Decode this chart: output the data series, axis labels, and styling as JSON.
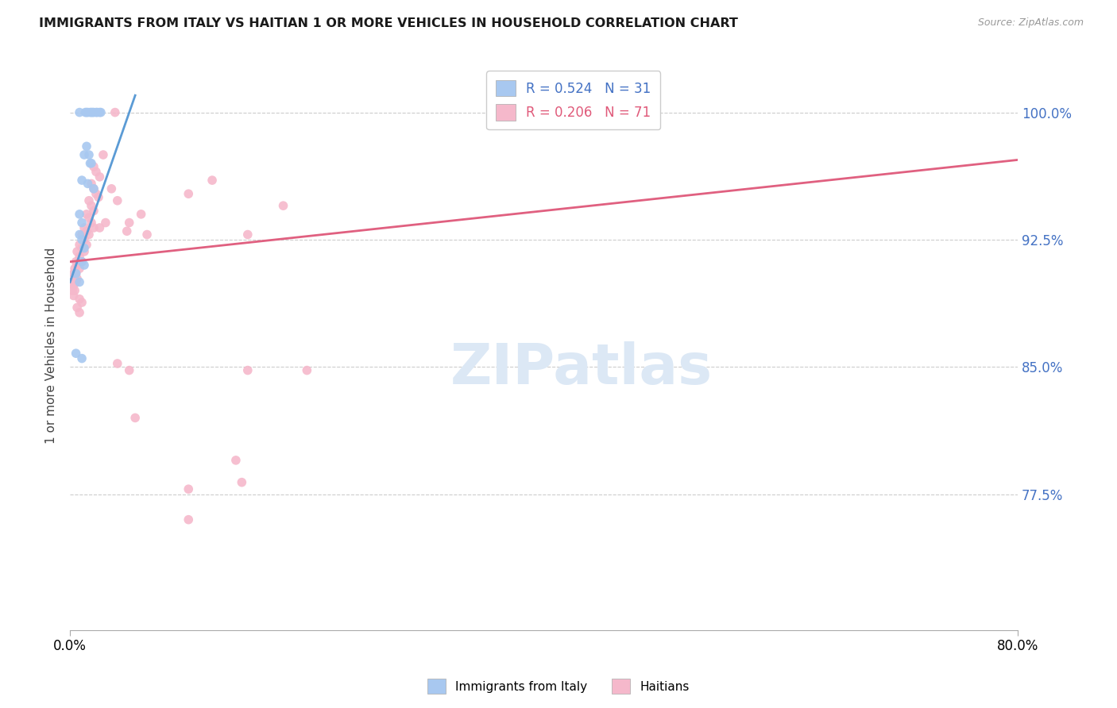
{
  "title": "IMMIGRANTS FROM ITALY VS HAITIAN 1 OR MORE VEHICLES IN HOUSEHOLD CORRELATION CHART",
  "source": "Source: ZipAtlas.com",
  "ylabel": "1 or more Vehicles in Household",
  "italy_color": "#a8c8f0",
  "haiti_color": "#f5b8cb",
  "italy_line_color": "#5b9bd5",
  "haiti_line_color": "#e06080",
  "marker_size": 70,
  "xlim": [
    0.0,
    0.8
  ],
  "ylim": [
    0.695,
    1.03
  ],
  "y_tick_positions": [
    0.775,
    0.85,
    0.925,
    1.0
  ],
  "y_tick_labels": [
    "77.5%",
    "85.0%",
    "92.5%",
    "100.0%"
  ],
  "x_tick_positions": [
    0.0,
    0.8
  ],
  "x_tick_labels": [
    "0.0%",
    "80.0%"
  ],
  "grid_color": "#cccccc",
  "background_color": "#ffffff",
  "watermark_text": "ZIPatlas",
  "watermark_color": "#dce8f5",
  "italy_points": [
    [
      0.008,
      1.0
    ],
    [
      0.013,
      1.0
    ],
    [
      0.014,
      1.0
    ],
    [
      0.015,
      1.0
    ],
    [
      0.017,
      1.0
    ],
    [
      0.018,
      1.0
    ],
    [
      0.019,
      1.0
    ],
    [
      0.02,
      1.0
    ],
    [
      0.022,
      1.0
    ],
    [
      0.023,
      1.0
    ],
    [
      0.025,
      1.0
    ],
    [
      0.026,
      1.0
    ],
    [
      0.014,
      0.98
    ],
    [
      0.016,
      0.975
    ],
    [
      0.017,
      0.97
    ],
    [
      0.01,
      0.96
    ],
    [
      0.015,
      0.958
    ],
    [
      0.02,
      0.955
    ],
    [
      0.012,
      0.975
    ],
    [
      0.018,
      0.97
    ],
    [
      0.008,
      0.94
    ],
    [
      0.01,
      0.935
    ],
    [
      0.008,
      0.928
    ],
    [
      0.01,
      0.925
    ],
    [
      0.012,
      0.92
    ],
    [
      0.01,
      0.912
    ],
    [
      0.012,
      0.91
    ],
    [
      0.005,
      0.905
    ],
    [
      0.008,
      0.9
    ],
    [
      0.005,
      0.858
    ],
    [
      0.01,
      0.855
    ]
  ],
  "haiti_points": [
    [
      0.038,
      1.0
    ],
    [
      0.028,
      0.975
    ],
    [
      0.02,
      0.968
    ],
    [
      0.022,
      0.965
    ],
    [
      0.025,
      0.962
    ],
    [
      0.018,
      0.958
    ],
    [
      0.02,
      0.955
    ],
    [
      0.022,
      0.952
    ],
    [
      0.024,
      0.95
    ],
    [
      0.016,
      0.948
    ],
    [
      0.018,
      0.945
    ],
    [
      0.02,
      0.942
    ],
    [
      0.014,
      0.94
    ],
    [
      0.016,
      0.938
    ],
    [
      0.018,
      0.935
    ],
    [
      0.02,
      0.932
    ],
    [
      0.012,
      0.932
    ],
    [
      0.014,
      0.93
    ],
    [
      0.016,
      0.928
    ],
    [
      0.01,
      0.928
    ],
    [
      0.012,
      0.925
    ],
    [
      0.014,
      0.922
    ],
    [
      0.008,
      0.922
    ],
    [
      0.01,
      0.92
    ],
    [
      0.012,
      0.918
    ],
    [
      0.006,
      0.918
    ],
    [
      0.008,
      0.915
    ],
    [
      0.01,
      0.912
    ],
    [
      0.005,
      0.912
    ],
    [
      0.006,
      0.91
    ],
    [
      0.008,
      0.908
    ],
    [
      0.004,
      0.908
    ],
    [
      0.005,
      0.905
    ],
    [
      0.006,
      0.902
    ],
    [
      0.003,
      0.905
    ],
    [
      0.004,
      0.902
    ],
    [
      0.005,
      0.9
    ],
    [
      0.002,
      0.9
    ],
    [
      0.003,
      0.898
    ],
    [
      0.004,
      0.895
    ],
    [
      0.002,
      0.895
    ],
    [
      0.003,
      0.892
    ],
    [
      0.008,
      0.89
    ],
    [
      0.01,
      0.888
    ],
    [
      0.006,
      0.885
    ],
    [
      0.008,
      0.882
    ],
    [
      0.025,
      0.932
    ],
    [
      0.03,
      0.935
    ],
    [
      0.035,
      0.955
    ],
    [
      0.04,
      0.948
    ],
    [
      0.048,
      0.93
    ],
    [
      0.05,
      0.935
    ],
    [
      0.06,
      0.94
    ],
    [
      0.065,
      0.928
    ],
    [
      0.1,
      0.952
    ],
    [
      0.12,
      0.96
    ],
    [
      0.15,
      0.928
    ],
    [
      0.18,
      0.945
    ],
    [
      0.04,
      0.852
    ],
    [
      0.05,
      0.848
    ],
    [
      0.15,
      0.848
    ],
    [
      0.2,
      0.848
    ],
    [
      0.055,
      0.82
    ],
    [
      0.14,
      0.795
    ],
    [
      0.145,
      0.782
    ],
    [
      0.1,
      0.778
    ],
    [
      0.1,
      0.76
    ]
  ],
  "italy_line_x": [
    0.0,
    0.055
  ],
  "italy_line_y": [
    0.9,
    1.01
  ],
  "haiti_line_x": [
    0.0,
    0.8
  ],
  "haiti_line_y": [
    0.912,
    0.972
  ]
}
